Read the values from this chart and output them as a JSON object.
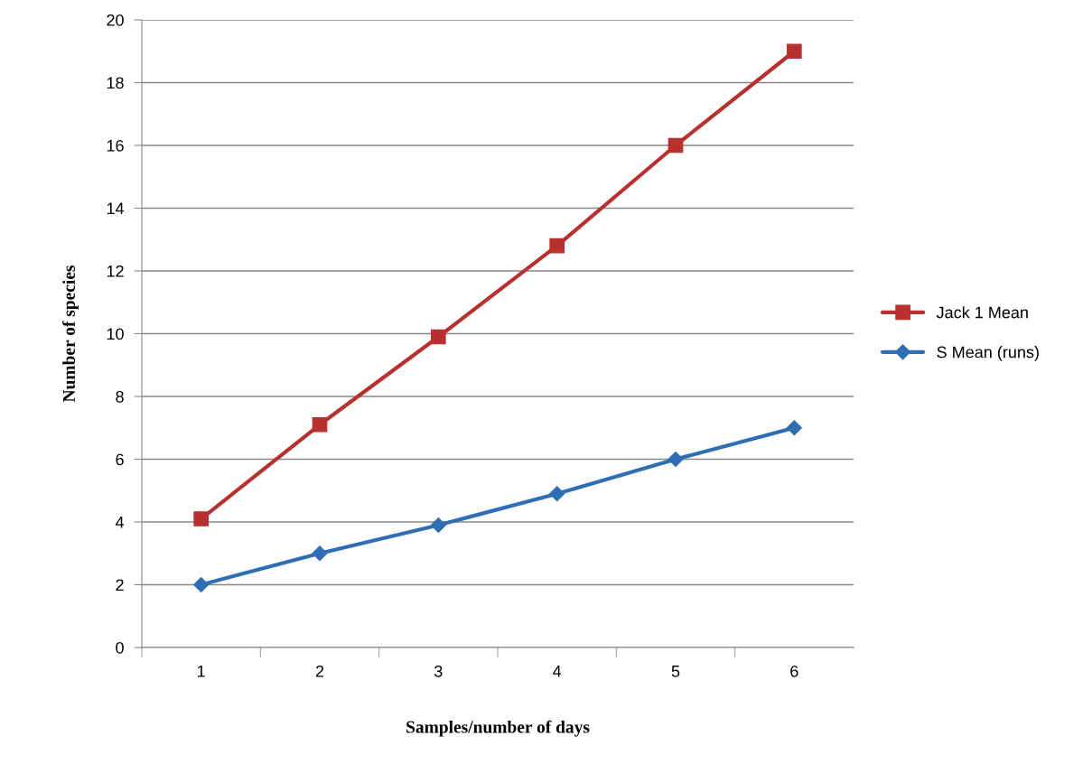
{
  "chart_data": {
    "type": "line",
    "xlabel": "Samples/number of days",
    "ylabel": "Number of species",
    "categories": [
      "1",
      "2",
      "3",
      "4",
      "5",
      "6"
    ],
    "series": [
      {
        "name": "Jack 1 Mean",
        "color": "#b8312f",
        "marker": "square",
        "values": [
          4.1,
          7.1,
          9.9,
          12.8,
          16,
          19
        ]
      },
      {
        "name": "S Mean (runs)",
        "color": "#2f6eb5",
        "marker": "diamond",
        "values": [
          2,
          3,
          3.9,
          4.9,
          6,
          7
        ]
      }
    ],
    "ylim": [
      0,
      20
    ],
    "yticks": [
      0,
      2,
      4,
      6,
      8,
      10,
      12,
      14,
      16,
      18,
      20
    ],
    "grid": "y",
    "legend": "right",
    "line_style": "solid"
  }
}
